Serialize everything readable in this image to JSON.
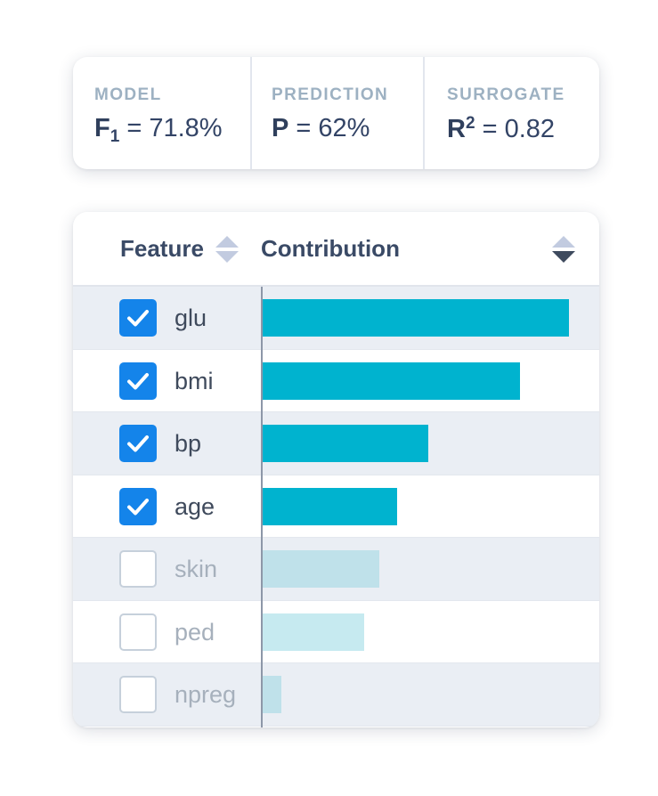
{
  "metrics": [
    {
      "label": "MODEL",
      "symbol": "F",
      "sub": "1",
      "sup": "",
      "rest": " = 71.8%"
    },
    {
      "label": "PREDICTION",
      "symbol": "P",
      "sub": "",
      "sup": "",
      "rest": " = 62%"
    },
    {
      "label": "SURROGATE",
      "symbol": "R",
      "sub": "",
      "sup": "2",
      "rest": " = 0.82"
    }
  ],
  "table": {
    "col_feature": "Feature",
    "col_contribution": "Contribution",
    "sort_active": "contribution-descending",
    "features": [
      {
        "name": "glu",
        "checked": true,
        "contribution": 1.0,
        "color": "#00b3cf"
      },
      {
        "name": "bmi",
        "checked": true,
        "contribution": 0.84,
        "color": "#00b3cf"
      },
      {
        "name": "bp",
        "checked": true,
        "contribution": 0.54,
        "color": "#00b3cf"
      },
      {
        "name": "age",
        "checked": true,
        "contribution": 0.44,
        "color": "#00b3cf"
      },
      {
        "name": "skin",
        "checked": false,
        "contribution": 0.38,
        "color": "#bfe1ea"
      },
      {
        "name": "ped",
        "checked": false,
        "contribution": 0.33,
        "color": "#c6eaf0"
      },
      {
        "name": "npreg",
        "checked": false,
        "contribution": 0.06,
        "color": "#bfe1ea"
      }
    ]
  },
  "colors": {
    "accent": "#1484ea",
    "bar_active": "#00b3cf"
  }
}
